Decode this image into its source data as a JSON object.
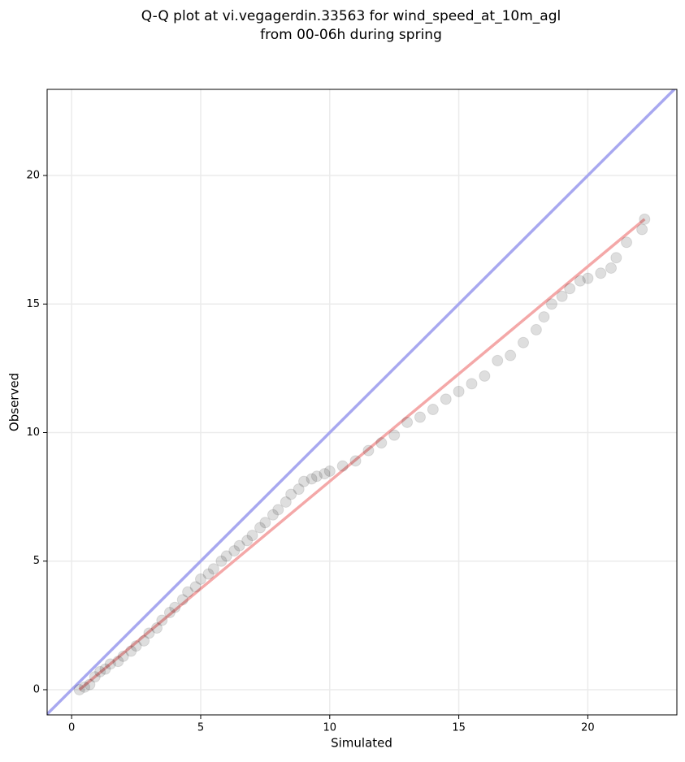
{
  "chart_data": {
    "type": "scatter",
    "title": [
      "Q-Q plot at vi.vegagerdin.33563 for wind_speed_at_10m_agl",
      "from 00-06h during spring"
    ],
    "xlabel": "Simulated",
    "ylabel": "Observed",
    "xlim": [
      -0.95,
      23.45
    ],
    "ylim": [
      -0.98,
      23.35
    ],
    "xticks": [
      0,
      5,
      10,
      15,
      20
    ],
    "yticks": [
      0,
      5,
      10,
      15,
      20
    ],
    "grid": true,
    "color": "#000000",
    "x": [
      0.3,
      0.5,
      0.7,
      0.9,
      1.1,
      1.3,
      1.5,
      1.8,
      2.0,
      2.3,
      2.5,
      2.8,
      3.0,
      3.3,
      3.5,
      3.8,
      4.0,
      4.3,
      4.5,
      4.8,
      5.0,
      5.3,
      5.5,
      5.8,
      6.0,
      6.3,
      6.5,
      6.8,
      7.0,
      7.3,
      7.5,
      7.8,
      8.0,
      8.3,
      8.5,
      8.8,
      9.0,
      9.3,
      9.5,
      9.8,
      10.0,
      10.5,
      11.0,
      11.5,
      12.0,
      12.5,
      13.0,
      13.5,
      14.0,
      14.5,
      15.0,
      15.5,
      16.0,
      16.5,
      17.0,
      17.5,
      18.0,
      18.3,
      18.6,
      19.0,
      19.3,
      19.7,
      20.0,
      20.5,
      20.9,
      21.1,
      21.5,
      22.1,
      22.2
    ],
    "values": [
      0.0,
      0.1,
      0.2,
      0.5,
      0.7,
      0.8,
      1.0,
      1.1,
      1.3,
      1.5,
      1.7,
      1.9,
      2.2,
      2.4,
      2.7,
      3.0,
      3.2,
      3.5,
      3.8,
      4.0,
      4.3,
      4.5,
      4.7,
      5.0,
      5.2,
      5.4,
      5.6,
      5.8,
      6.0,
      6.3,
      6.5,
      6.8,
      7.0,
      7.3,
      7.6,
      7.8,
      8.1,
      8.2,
      8.3,
      8.4,
      8.5,
      8.7,
      8.9,
      9.3,
      9.6,
      9.9,
      10.4,
      10.6,
      10.9,
      11.3,
      11.6,
      11.9,
      12.2,
      12.8,
      13.0,
      13.5,
      14.0,
      14.5,
      15.0,
      15.3,
      15.6,
      15.9,
      16.0,
      16.2,
      16.4,
      16.8,
      17.4,
      17.9,
      18.3
    ],
    "lines": [
      {
        "color": "#a8a8f0",
        "x": [
          -0.95,
          23.45
        ],
        "values": [
          -0.95,
          23.45
        ]
      },
      {
        "color": "#f4a8a8",
        "x": [
          0.3,
          22.2
        ],
        "values": [
          0.0,
          18.3
        ]
      }
    ]
  }
}
